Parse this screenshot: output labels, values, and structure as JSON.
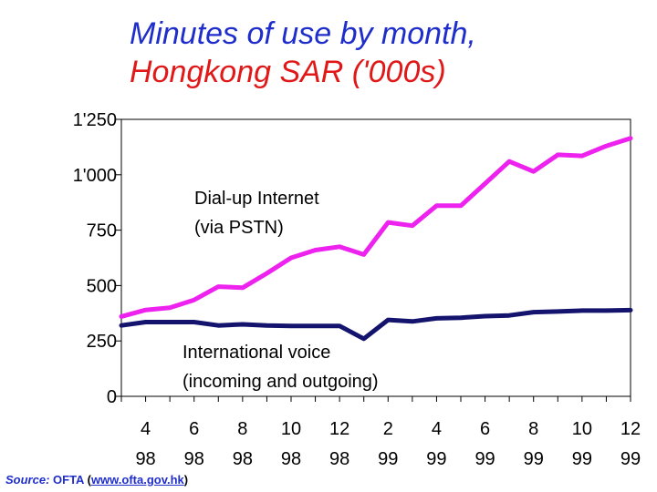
{
  "title": "Minutes of use by month,",
  "subtitle": "Hongkong SAR  ('000s)",
  "source": {
    "label": "Source:",
    "org": "OFTA",
    "url": "www.ofta.gov.hk"
  },
  "colors": {
    "title": "#1f2ecb",
    "subtitle": "#e01818",
    "dialup": "#ee22ee",
    "voice": "#14146e"
  },
  "chart_data": {
    "type": "line",
    "ylim": [
      0,
      1250
    ],
    "yticks": [
      {
        "value": 0,
        "label": "0"
      },
      {
        "value": 250,
        "label": "250"
      },
      {
        "value": 500,
        "label": "500"
      },
      {
        "value": 750,
        "label": "750"
      },
      {
        "value": 1000,
        "label": "1'000"
      },
      {
        "value": 1250,
        "label": "1'250"
      }
    ],
    "x": [
      "3 98",
      "4 98",
      "5 98",
      "6 98",
      "7 98",
      "8 98",
      "9 98",
      "10 98",
      "11 98",
      "12 98",
      "1 99",
      "2 99",
      "3 99",
      "4 99",
      "5 99",
      "6 99",
      "7 99",
      "8 99",
      "9 99",
      "10 99",
      "11 99",
      "12 99"
    ],
    "xticks": [
      {
        "month": "4",
        "year": "98"
      },
      {
        "month": "6",
        "year": "98"
      },
      {
        "month": "8",
        "year": "98"
      },
      {
        "month": "10",
        "year": "98"
      },
      {
        "month": "12",
        "year": "98"
      },
      {
        "month": "2",
        "year": "99"
      },
      {
        "month": "4",
        "year": "99"
      },
      {
        "month": "6",
        "year": "99"
      },
      {
        "month": "8",
        "year": "99"
      },
      {
        "month": "10",
        "year": "99"
      },
      {
        "month": "12",
        "year": "99"
      }
    ],
    "series": [
      {
        "name": "Dial-up Internet (via PSTN)",
        "label_lines": [
          "Dial-up Internet",
          "(via PSTN)"
        ],
        "values": [
          360,
          390,
          400,
          435,
          495,
          490,
          555,
          625,
          660,
          675,
          640,
          785,
          770,
          860,
          860,
          960,
          1060,
          1015,
          1090,
          1085,
          1130,
          1165
        ]
      },
      {
        "name": "International voice (incoming and outgoing)",
        "label_lines": [
          "International voice",
          "(incoming and outgoing)"
        ],
        "values": [
          320,
          335,
          335,
          335,
          320,
          325,
          320,
          318,
          318,
          318,
          260,
          345,
          338,
          352,
          355,
          362,
          365,
          380,
          383,
          387,
          387,
          389
        ]
      }
    ]
  }
}
